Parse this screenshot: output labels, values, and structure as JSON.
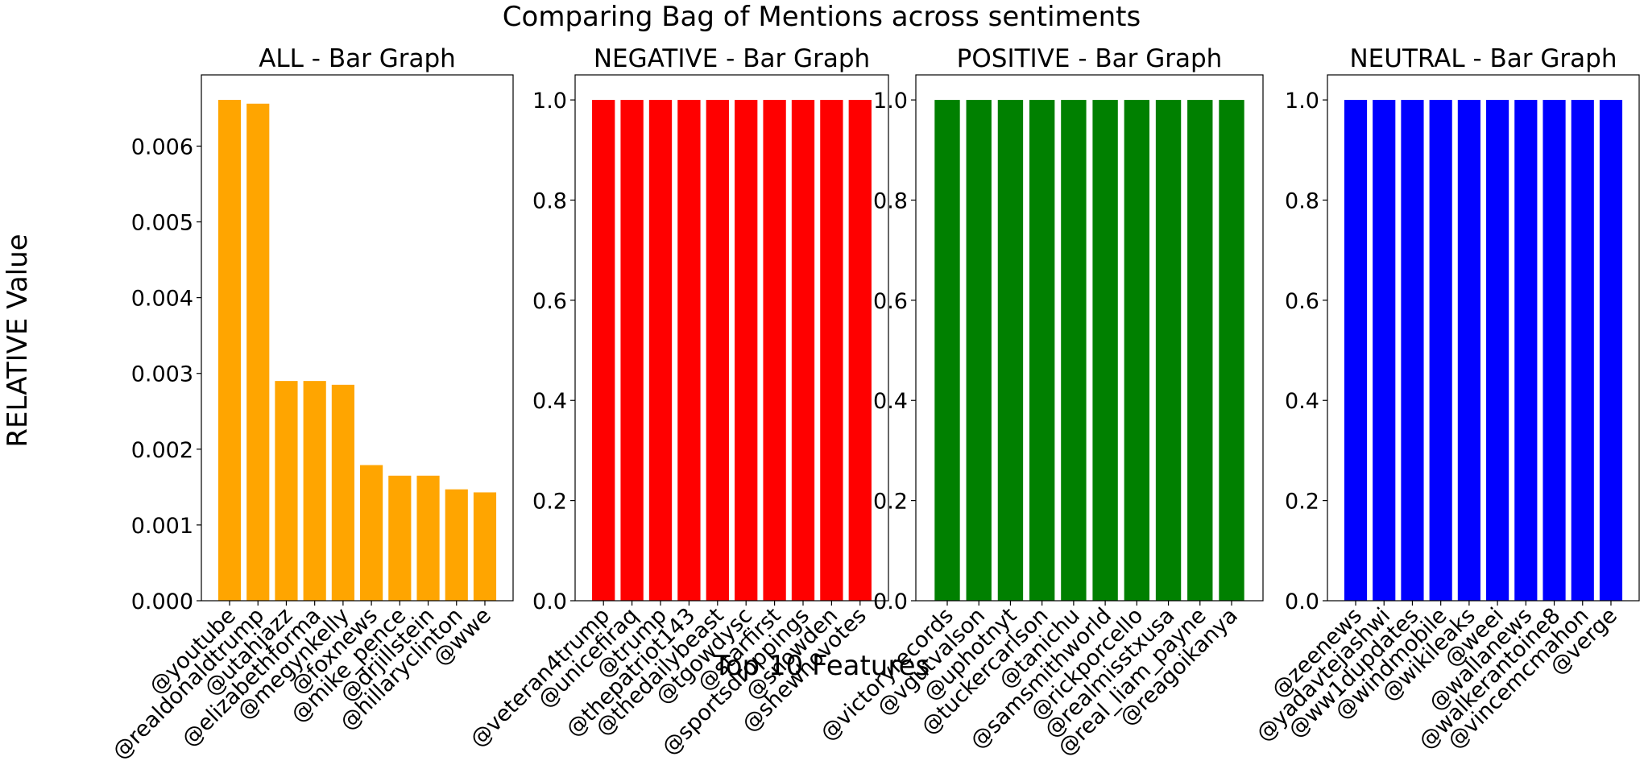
{
  "title": "Comparing Bag of Mentions across sentiments",
  "ylabel": "RELATIVE Value",
  "xlabel": "Top 10 Features",
  "chart_data": [
    {
      "type": "bar",
      "title": "ALL - Bar Graph",
      "color": "#FFA500",
      "categories": [
        "@youtube",
        "@realdonaldtrump",
        "@utahjazz",
        "@elizabethforma",
        "@megynkelly",
        "@foxnews",
        "@mike_pence",
        "@drjillstein",
        "@hillaryclinton",
        "@wwe"
      ],
      "values": [
        0.00661,
        0.00656,
        0.0029,
        0.0029,
        0.00285,
        0.00179,
        0.00165,
        0.00165,
        0.00147,
        0.00143
      ],
      "ylim": [
        0,
        0.00694
      ],
      "yticks": [
        "0.000",
        "0.001",
        "0.002",
        "0.003",
        "0.004",
        "0.005",
        "0.006"
      ],
      "ytick_values": [
        0,
        0.001,
        0.002,
        0.003,
        0.004,
        0.005,
        0.006
      ]
    },
    {
      "type": "bar",
      "title": "NEGATIVE - Bar Graph",
      "color": "#FF0000",
      "categories": [
        "@veteran4trump",
        "@unicefiraq",
        "@trump",
        "@thepatriot143",
        "@thedailybeast",
        "@tgowdysc",
        "@starfirst",
        "@sportsdroppings",
        "@snowden",
        "@shewhovotes"
      ],
      "values": [
        1,
        1,
        1,
        1,
        1,
        1,
        1,
        1,
        1,
        1
      ],
      "ylim": [
        0,
        1.05
      ],
      "yticks": [
        "0.0",
        "0.2",
        "0.4",
        "0.6",
        "0.8",
        "1.0"
      ],
      "ytick_values": [
        0,
        0.2,
        0.4,
        0.6,
        0.8,
        1.0
      ]
    },
    {
      "type": "bar",
      "title": "POSITIVE - Bar Graph",
      "color": "#008000",
      "categories": [
        "@victoryrecords",
        "@vgutvalson",
        "@uphotnyt",
        "@tuckercarlson",
        "@tanichu",
        "@samsmithworld",
        "@rickporcello",
        "@realmisstxusa",
        "@real_liam_payne",
        "@reagoikanya"
      ],
      "values": [
        1,
        1,
        1,
        1,
        1,
        1,
        1,
        1,
        1,
        1
      ],
      "ylim": [
        0,
        1.05
      ],
      "yticks": [
        "0.0",
        "0.2",
        "0.4",
        "0.6",
        "0.8",
        "1.0"
      ],
      "ytick_values": [
        0,
        0.2,
        0.4,
        0.6,
        0.8,
        1.0
      ]
    },
    {
      "type": "bar",
      "title": "NEUTRAL - Bar Graph",
      "color": "#0000FF",
      "categories": [
        "@zeenews",
        "@yadavtejashwi",
        "@ww1dupdates",
        "@windmobile",
        "@wikileaks",
        "@weei",
        "@wallanews",
        "@walkerantoine8",
        "@vincemcmahon",
        "@verge"
      ],
      "values": [
        1,
        1,
        1,
        1,
        1,
        1,
        1,
        1,
        1,
        1
      ],
      "ylim": [
        0,
        1.05
      ],
      "yticks": [
        "0.0",
        "0.2",
        "0.4",
        "0.6",
        "0.8",
        "1.0"
      ],
      "ytick_values": [
        0,
        0.2,
        0.4,
        0.6,
        0.8,
        1.0
      ]
    }
  ]
}
